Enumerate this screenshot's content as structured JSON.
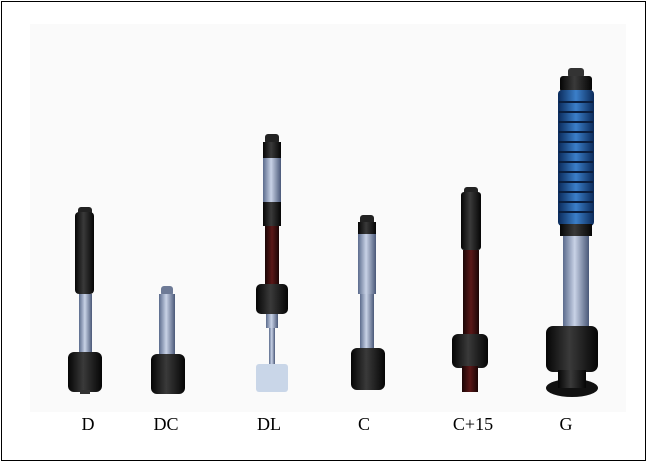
{
  "figure": {
    "labels": [
      "D",
      "DC",
      "DL",
      "C",
      "C+15",
      "G"
    ]
  }
}
